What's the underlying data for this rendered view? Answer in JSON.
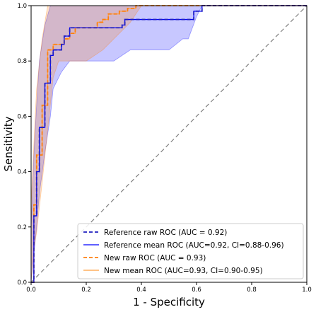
{
  "chart_data": {
    "type": "line",
    "title": "",
    "xlabel": "1 - Specificity",
    "ylabel": "Sensitivity",
    "xlim": [
      0,
      1
    ],
    "ylim": [
      0,
      1
    ],
    "xticks": [
      "0.0",
      "0.2",
      "0.4",
      "0.6",
      "0.8",
      "1.0"
    ],
    "yticks": [
      "0.0",
      "0.2",
      "0.4",
      "0.6",
      "0.8",
      "1.0"
    ],
    "grid": false,
    "legend_position": "lower-right",
    "chance_line": {
      "x": [
        0,
        1
      ],
      "y": [
        0,
        1
      ],
      "color": "#7f7f7f",
      "style": "dashed"
    },
    "series": [
      {
        "name": "Reference raw ROC (AUC = 0.92)",
        "color": "#1f1fbf",
        "style": "dashed",
        "x": [
          0,
          0.01,
          0.01,
          0.02,
          0.02,
          0.03,
          0.03,
          0.05,
          0.05,
          0.07,
          0.07,
          0.08,
          0.08,
          0.11,
          0.11,
          0.12,
          0.12,
          0.14,
          0.14,
          0.33,
          0.33,
          0.34,
          0.34,
          0.59,
          0.59,
          0.62,
          0.62,
          1.0
        ],
        "y": [
          0,
          0,
          0.24,
          0.24,
          0.4,
          0.4,
          0.56,
          0.56,
          0.72,
          0.72,
          0.82,
          0.82,
          0.84,
          0.84,
          0.86,
          0.86,
          0.89,
          0.89,
          0.92,
          0.92,
          0.93,
          0.93,
          0.95,
          0.95,
          0.98,
          0.98,
          1.0,
          1.0
        ]
      },
      {
        "name": "Reference mean ROC (AUC=0.92, CI=0.88-0.96)",
        "color": "#0000ff",
        "style": "solid",
        "x": [
          0,
          0.01,
          0.01,
          0.02,
          0.02,
          0.03,
          0.03,
          0.05,
          0.05,
          0.07,
          0.07,
          0.08,
          0.08,
          0.11,
          0.11,
          0.12,
          0.12,
          0.14,
          0.14,
          0.33,
          0.33,
          0.34,
          0.34,
          0.59,
          0.59,
          0.62,
          0.62,
          1.0
        ],
        "y": [
          0,
          0,
          0.24,
          0.24,
          0.4,
          0.4,
          0.56,
          0.56,
          0.72,
          0.72,
          0.82,
          0.82,
          0.84,
          0.84,
          0.86,
          0.86,
          0.89,
          0.89,
          0.92,
          0.92,
          0.93,
          0.93,
          0.95,
          0.95,
          0.98,
          0.98,
          1.0,
          1.0
        ]
      },
      {
        "name": "New raw ROC (AUC = 0.93)",
        "color": "#ff7f0e",
        "style": "dashed",
        "x": [
          0,
          0.01,
          0.01,
          0.02,
          0.02,
          0.04,
          0.04,
          0.06,
          0.06,
          0.08,
          0.08,
          0.12,
          0.12,
          0.14,
          0.14,
          0.16,
          0.16,
          0.24,
          0.24,
          0.26,
          0.26,
          0.28,
          0.28,
          0.32,
          0.32,
          0.35,
          0.35,
          0.38,
          0.38,
          1.0
        ],
        "y": [
          0,
          0,
          0.28,
          0.28,
          0.46,
          0.46,
          0.64,
          0.64,
          0.84,
          0.84,
          0.86,
          0.86,
          0.88,
          0.88,
          0.9,
          0.9,
          0.92,
          0.92,
          0.94,
          0.94,
          0.95,
          0.95,
          0.97,
          0.97,
          0.98,
          0.98,
          0.99,
          0.99,
          1.0,
          1.0
        ]
      },
      {
        "name": "New mean ROC (AUC=0.93, CI=0.90-0.95)",
        "color": "#ff9f3f",
        "style": "solid",
        "x": [
          0,
          0.01,
          0.01,
          0.02,
          0.02,
          0.04,
          0.04,
          0.06,
          0.06,
          0.08,
          0.08,
          0.12,
          0.12,
          0.14,
          0.14,
          0.16,
          0.16,
          0.24,
          0.24,
          0.26,
          0.26,
          0.28,
          0.28,
          0.32,
          0.32,
          0.35,
          0.35,
          0.38,
          0.38,
          1.0
        ],
        "y": [
          0,
          0,
          0.28,
          0.28,
          0.46,
          0.46,
          0.64,
          0.64,
          0.84,
          0.84,
          0.86,
          0.86,
          0.88,
          0.88,
          0.9,
          0.9,
          0.92,
          0.92,
          0.94,
          0.94,
          0.95,
          0.95,
          0.97,
          0.97,
          0.98,
          0.98,
          0.99,
          0.99,
          1.0,
          1.0
        ]
      }
    ],
    "confidence_bands": [
      {
        "color": "#0000ff",
        "opacity": 0.22,
        "x": [
          0,
          0.01,
          0.02,
          0.03,
          0.05,
          0.07,
          0.08,
          0.11,
          0.14,
          0.2,
          0.3,
          0.36,
          0.4,
          0.5,
          0.55,
          0.57,
          0.6,
          0.62,
          0.64,
          1.0
        ],
        "lower": [
          0,
          0.1,
          0.2,
          0.32,
          0.47,
          0.6,
          0.7,
          0.76,
          0.8,
          0.8,
          0.8,
          0.84,
          0.84,
          0.84,
          0.88,
          0.88,
          0.96,
          1.0,
          1.0,
          1.0
        ],
        "upper": [
          0.2,
          0.46,
          0.64,
          0.8,
          0.93,
          1.0,
          1.0,
          1.0,
          1.0,
          1.0,
          1.0,
          1.0,
          1.0,
          1.0,
          1.0,
          1.0,
          1.0,
          1.0,
          1.0,
          1.0
        ]
      },
      {
        "color": "#ff7f0e",
        "opacity": 0.22,
        "x": [
          0,
          0.01,
          0.02,
          0.04,
          0.06,
          0.08,
          0.1,
          0.14,
          0.2,
          0.26,
          0.3,
          0.36,
          0.4,
          1.0
        ],
        "lower": [
          0,
          0.12,
          0.18,
          0.36,
          0.55,
          0.74,
          0.8,
          0.8,
          0.8,
          0.84,
          0.88,
          0.94,
          1.0,
          1.0
        ],
        "upper": [
          0.28,
          0.5,
          0.7,
          0.88,
          1.0,
          1.0,
          1.0,
          1.0,
          1.0,
          1.0,
          1.0,
          1.0,
          1.0,
          1.0
        ]
      }
    ]
  }
}
